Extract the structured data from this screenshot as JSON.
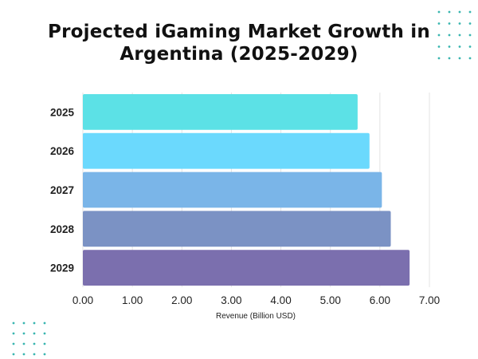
{
  "chart_data": {
    "type": "bar",
    "orientation": "horizontal",
    "title_lines": [
      "Projected iGaming Market Growth in",
      "Argentina (2025-2029)"
    ],
    "xlabel": "Revenue (Billion USD)",
    "ylabel": "",
    "categories": [
      "2025",
      "2026",
      "2027",
      "2028",
      "2029"
    ],
    "values": [
      5.55,
      5.79,
      6.04,
      6.22,
      6.6
    ],
    "xlim": [
      0,
      7
    ],
    "xticks": [
      "0.00",
      "1.00",
      "2.00",
      "3.00",
      "4.00",
      "5.00",
      "6.00",
      "7.00"
    ],
    "grid": "vertical",
    "legend": "none",
    "bar_colors": [
      "#5ce1e6",
      "#6bd9fd",
      "#7ab5e8",
      "#7b92c4",
      "#7b6fae"
    ]
  },
  "decor": {
    "dot_color": "#39b6b0"
  }
}
